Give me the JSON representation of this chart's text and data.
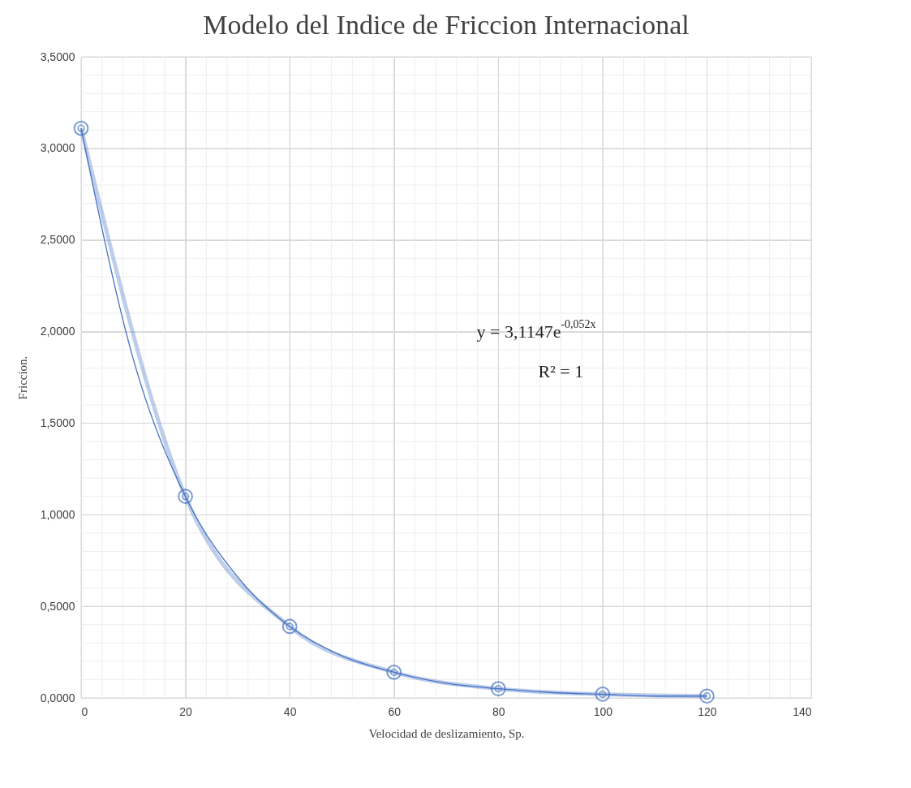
{
  "chart_data": {
    "type": "line",
    "title": "Modelo del Indice de Friccion Internacional",
    "xlabel": "Velocidad de deslizamiento, Sp.",
    "ylabel": "Friccion.",
    "xlim": [
      0,
      140
    ],
    "xticks": [
      0,
      20,
      40,
      60,
      80,
      100,
      120,
      140
    ],
    "ylim": [
      0,
      3.5
    ],
    "yticks": [
      {
        "value": 0,
        "label": "0,0000"
      },
      {
        "value": 0.5,
        "label": "0,5000"
      },
      {
        "value": 1,
        "label": "1,0000"
      },
      {
        "value": 1.5,
        "label": "1,5000"
      },
      {
        "value": 2,
        "label": "2,0000"
      },
      {
        "value": 2.5,
        "label": "2,5000"
      },
      {
        "value": 3,
        "label": "3,0000"
      },
      {
        "value": 3.5,
        "label": "3,5000"
      }
    ],
    "grid": true,
    "line_style": "solid",
    "series": [
      {
        "color": "#4472c4",
        "marker": "circle",
        "x": [
          0,
          20,
          40,
          60,
          80,
          100,
          120
        ],
        "values": [
          3.11,
          1.1,
          0.39,
          0.14,
          0.05,
          0.02,
          0.01
        ]
      },
      {
        "color": "#4472c4",
        "x": [
          0,
          10,
          20,
          30,
          40,
          50,
          60,
          70,
          80,
          90,
          100,
          110,
          120
        ],
        "values": [
          3.11,
          1.85,
          1.1,
          0.66,
          0.39,
          0.23,
          0.14,
          0.08,
          0.05,
          0.03,
          0.02,
          0.01,
          0.01
        ]
      }
    ],
    "annotations": [
      "y = 3,1147e$^{-0,052x}$",
      "R² = 1"
    ]
  }
}
